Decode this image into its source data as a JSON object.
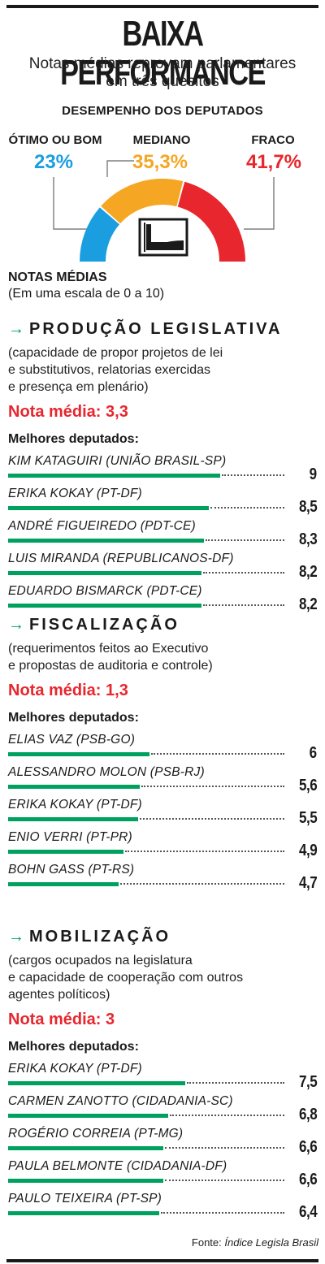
{
  "title": "BAIXA PERFORMANCE",
  "subtitle_line1": "Notas médias reprovam parlamentares",
  "subtitle_line2": "em três quesitos",
  "gauge": {
    "heading": "DESEMPENHO DOS DEPUTADOS",
    "segments": [
      {
        "label": "ÓTIMO OU BOM",
        "value_text": "23%",
        "value": 23,
        "color": "#1a9ee0"
      },
      {
        "label": "MEDIANO",
        "value_text": "35,3%",
        "value": 35.3,
        "color": "#f5a623"
      },
      {
        "label": "FRACO",
        "value_text": "41,7%",
        "value": 41.7,
        "color": "#e8262d"
      }
    ]
  },
  "notas": {
    "heading": "NOTAS MÉDIAS",
    "scale": "(Em uma escala de 0 a 10)"
  },
  "chart_data": [
    {
      "type": "bar",
      "title": "PRODUÇÃO LEGISLATIVA",
      "description_lines": [
        "(capacidade de propor projetos de lei",
        "e substitutivos, relatorias exercidas",
        "e presença em plenário)"
      ],
      "score_label": "Nota média: 3,3",
      "best_label": "Melhores deputados:",
      "categories": [
        "KIM KATAGUIRI (UNIÃO BRASIL-SP)",
        "ERIKA KOKAY (PT-DF)",
        "ANDRÉ FIGUEIREDO (PDT-CE)",
        "LUIS MIRANDA (REPUBLICANOS-DF)",
        "EDUARDO BISMARCK (PDT-CE)"
      ],
      "values": [
        9,
        8.5,
        8.3,
        8.2,
        8.2
      ],
      "value_labels": [
        "9",
        "8,5",
        "8,3",
        "8,2",
        "8,2"
      ],
      "ylim": [
        0,
        10
      ]
    },
    {
      "type": "bar",
      "title": "FISCALIZAÇÃO",
      "description_lines": [
        "(requerimentos feitos ao Executivo",
        "e propostas de auditoria e controle)"
      ],
      "score_label": "Nota média: 1,3",
      "best_label": "Melhores deputados:",
      "categories": [
        "ELIAS VAZ (PSB-GO)",
        "ALESSANDRO MOLON (PSB-RJ)",
        "ERIKA KOKAY (PT-DF)",
        "ENIO VERRI (PT-PR)",
        "BOHN GASS (PT-RS)"
      ],
      "values": [
        6,
        5.6,
        5.5,
        4.9,
        4.7
      ],
      "value_labels": [
        "6",
        "5,6",
        "5,5",
        "4,9",
        "4,7"
      ],
      "ylim": [
        0,
        10
      ]
    },
    {
      "type": "bar",
      "title": "MOBILIZAÇÃO",
      "description_lines": [
        "(cargos ocupados na legislatura",
        "e capacidade de cooperação com outros",
        "agentes políticos)"
      ],
      "score_label": "Nota média: 3",
      "best_label": "Melhores deputados:",
      "categories": [
        "ERIKA KOKAY (PT-DF)",
        "CARMEN ZANOTTO (CIDADANIA-SC)",
        "ROGÉRIO CORREIA (PT-MG)",
        "PAULA BELMONTE (CIDADANIA-DF)",
        "PAULO TEIXEIRA (PT-SP)"
      ],
      "values": [
        7.5,
        6.8,
        6.6,
        6.6,
        6.4
      ],
      "value_labels": [
        "7,5",
        "6,8",
        "6,6",
        "6,6",
        "6,4"
      ],
      "ylim": [
        0,
        10
      ]
    }
  ],
  "colors": {
    "bar": "#00a15f",
    "accent_red": "#e8262d"
  },
  "source_prefix": "Fonte: ",
  "source_name": "Índice Legisla Brasil"
}
